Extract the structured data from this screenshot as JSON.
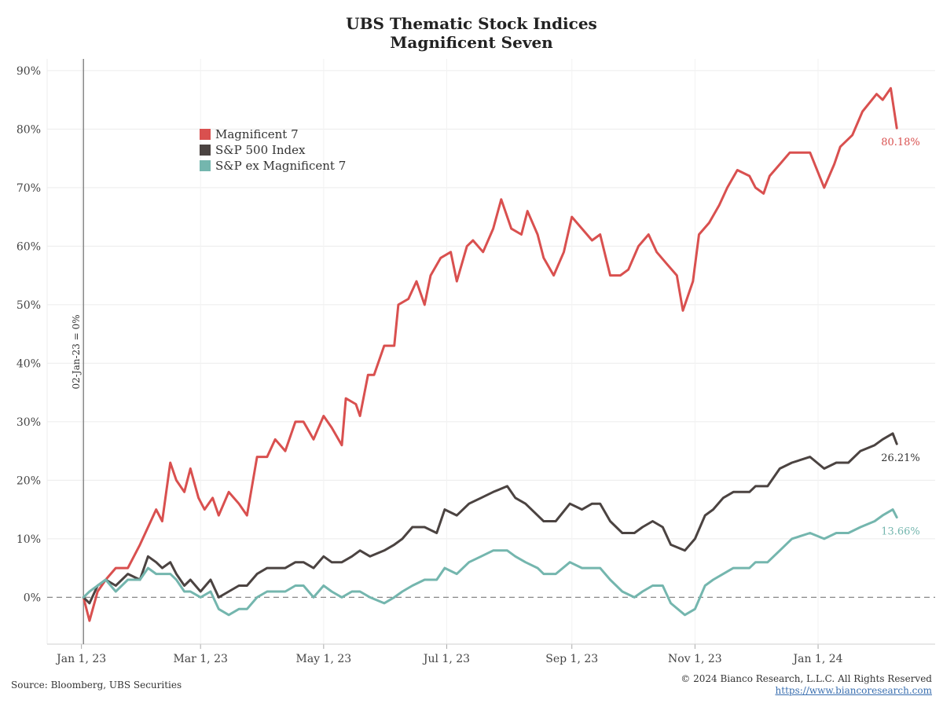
{
  "title": "UBS Thematic Stock Indices",
  "subtitle": "Magnificent Seven",
  "source": "Source: Bloomberg, UBS Securities",
  "copyright": "© 2024 Bianco Research, L.L.C. All Rights Reserved",
  "url": "https://www.biancoresearch.com",
  "chart_data": {
    "type": "line",
    "x_range": [
      "2022-12-15",
      "2024-02-28"
    ],
    "ylim": [
      -8,
      92
    ],
    "y_ticks": [
      0,
      10,
      20,
      30,
      40,
      50,
      60,
      70,
      80,
      90
    ],
    "y_tick_labels": [
      "0%",
      "10%",
      "20%",
      "30%",
      "40%",
      "50%",
      "60%",
      "70%",
      "80%",
      "90%"
    ],
    "x_ticks": [
      "2023-01-01",
      "2023-03-01",
      "2023-05-01",
      "2023-07-01",
      "2023-09-01",
      "2023-11-01",
      "2024-01-01"
    ],
    "x_tick_labels": [
      "Jan 1, 23",
      "Mar 1, 23",
      "May 1, 23",
      "Jul 1, 23",
      "Sep 1, 23",
      "Nov 1, 23",
      "Jan 1, 24"
    ],
    "grid": true,
    "legend_position": "top-left",
    "reference_line": {
      "date": "2023-01-02",
      "label": "02-Jan-23 = 0%"
    },
    "zero_line": true,
    "series": [
      {
        "name": "Magnificent 7",
        "color": "#d9504f",
        "end_label": "80.18%",
        "points": [
          [
            "2023-01-02",
            0
          ],
          [
            "2023-01-05",
            -4
          ],
          [
            "2023-01-09",
            1
          ],
          [
            "2023-01-13",
            3
          ],
          [
            "2023-01-18",
            5
          ],
          [
            "2023-01-24",
            5
          ],
          [
            "2023-01-30",
            9
          ],
          [
            "2023-02-03",
            12
          ],
          [
            "2023-02-07",
            15
          ],
          [
            "2023-02-10",
            13
          ],
          [
            "2023-02-14",
            23
          ],
          [
            "2023-02-17",
            20
          ],
          [
            "2023-02-21",
            18
          ],
          [
            "2023-02-24",
            22
          ],
          [
            "2023-02-28",
            17
          ],
          [
            "2023-03-03",
            15
          ],
          [
            "2023-03-07",
            17
          ],
          [
            "2023-03-10",
            14
          ],
          [
            "2023-03-15",
            18
          ],
          [
            "2023-03-20",
            16
          ],
          [
            "2023-03-24",
            14
          ],
          [
            "2023-03-29",
            24
          ],
          [
            "2023-04-03",
            24
          ],
          [
            "2023-04-07",
            27
          ],
          [
            "2023-04-12",
            25
          ],
          [
            "2023-04-17",
            30
          ],
          [
            "2023-04-21",
            30
          ],
          [
            "2023-04-26",
            27
          ],
          [
            "2023-05-01",
            31
          ],
          [
            "2023-05-05",
            29
          ],
          [
            "2023-05-10",
            26
          ],
          [
            "2023-05-12",
            34
          ],
          [
            "2023-05-17",
            33
          ],
          [
            "2023-05-19",
            31
          ],
          [
            "2023-05-23",
            38
          ],
          [
            "2023-05-26",
            38
          ],
          [
            "2023-05-31",
            43
          ],
          [
            "2023-06-05",
            43
          ],
          [
            "2023-06-07",
            50
          ],
          [
            "2023-06-12",
            51
          ],
          [
            "2023-06-16",
            54
          ],
          [
            "2023-06-20",
            50
          ],
          [
            "2023-06-23",
            55
          ],
          [
            "2023-06-28",
            58
          ],
          [
            "2023-07-03",
            59
          ],
          [
            "2023-07-06",
            54
          ],
          [
            "2023-07-11",
            60
          ],
          [
            "2023-07-14",
            61
          ],
          [
            "2023-07-19",
            59
          ],
          [
            "2023-07-24",
            63
          ],
          [
            "2023-07-28",
            68
          ],
          [
            "2023-08-02",
            63
          ],
          [
            "2023-08-07",
            62
          ],
          [
            "2023-08-10",
            66
          ],
          [
            "2023-08-15",
            62
          ],
          [
            "2023-08-18",
            58
          ],
          [
            "2023-08-23",
            55
          ],
          [
            "2023-08-28",
            59
          ],
          [
            "2023-09-01",
            65
          ],
          [
            "2023-09-06",
            63
          ],
          [
            "2023-09-11",
            61
          ],
          [
            "2023-09-15",
            62
          ],
          [
            "2023-09-20",
            55
          ],
          [
            "2023-09-25",
            55
          ],
          [
            "2023-09-29",
            56
          ],
          [
            "2023-10-04",
            60
          ],
          [
            "2023-10-09",
            62
          ],
          [
            "2023-10-13",
            59
          ],
          [
            "2023-10-18",
            57
          ],
          [
            "2023-10-23",
            55
          ],
          [
            "2023-10-26",
            49
          ],
          [
            "2023-10-31",
            54
          ],
          [
            "2023-11-03",
            62
          ],
          [
            "2023-11-08",
            64
          ],
          [
            "2023-11-13",
            67
          ],
          [
            "2023-11-17",
            70
          ],
          [
            "2023-11-22",
            73
          ],
          [
            "2023-11-28",
            72
          ],
          [
            "2023-12-01",
            70
          ],
          [
            "2023-12-05",
            69
          ],
          [
            "2023-12-08",
            72
          ],
          [
            "2023-12-13",
            74
          ],
          [
            "2023-12-18",
            76
          ],
          [
            "2023-12-22",
            76
          ],
          [
            "2023-12-28",
            76
          ],
          [
            "2024-01-04",
            70
          ],
          [
            "2024-01-09",
            74
          ],
          [
            "2024-01-12",
            77
          ],
          [
            "2024-01-18",
            79
          ],
          [
            "2024-01-23",
            83
          ],
          [
            "2024-01-30",
            86
          ],
          [
            "2024-02-02",
            85
          ],
          [
            "2024-02-06",
            87
          ],
          [
            "2024-02-09",
            80.18
          ]
        ]
      },
      {
        "name": "S&P 500 Index",
        "color": "#4b4341",
        "end_label": "26.21%",
        "points": [
          [
            "2023-01-02",
            0
          ],
          [
            "2023-01-05",
            -1
          ],
          [
            "2023-01-09",
            2
          ],
          [
            "2023-01-13",
            3
          ],
          [
            "2023-01-18",
            2
          ],
          [
            "2023-01-24",
            4
          ],
          [
            "2023-01-30",
            3
          ],
          [
            "2023-02-03",
            7
          ],
          [
            "2023-02-07",
            6
          ],
          [
            "2023-02-10",
            5
          ],
          [
            "2023-02-14",
            6
          ],
          [
            "2023-02-17",
            4
          ],
          [
            "2023-02-21",
            2
          ],
          [
            "2023-02-24",
            3
          ],
          [
            "2023-03-01",
            1
          ],
          [
            "2023-03-06",
            3
          ],
          [
            "2023-03-10",
            0
          ],
          [
            "2023-03-15",
            1
          ],
          [
            "2023-03-20",
            2
          ],
          [
            "2023-03-24",
            2
          ],
          [
            "2023-03-29",
            4
          ],
          [
            "2023-04-03",
            5
          ],
          [
            "2023-04-07",
            5
          ],
          [
            "2023-04-12",
            5
          ],
          [
            "2023-04-17",
            6
          ],
          [
            "2023-04-21",
            6
          ],
          [
            "2023-04-26",
            5
          ],
          [
            "2023-05-01",
            7
          ],
          [
            "2023-05-05",
            6
          ],
          [
            "2023-05-10",
            6
          ],
          [
            "2023-05-15",
            7
          ],
          [
            "2023-05-19",
            8
          ],
          [
            "2023-05-24",
            7
          ],
          [
            "2023-05-31",
            8
          ],
          [
            "2023-06-05",
            9
          ],
          [
            "2023-06-09",
            10
          ],
          [
            "2023-06-14",
            12
          ],
          [
            "2023-06-20",
            12
          ],
          [
            "2023-06-26",
            11
          ],
          [
            "2023-06-30",
            15
          ],
          [
            "2023-07-06",
            14
          ],
          [
            "2023-07-12",
            16
          ],
          [
            "2023-07-18",
            17
          ],
          [
            "2023-07-24",
            18
          ],
          [
            "2023-07-31",
            19
          ],
          [
            "2023-08-04",
            17
          ],
          [
            "2023-08-09",
            16
          ],
          [
            "2023-08-15",
            14
          ],
          [
            "2023-08-18",
            13
          ],
          [
            "2023-08-24",
            13
          ],
          [
            "2023-08-31",
            16
          ],
          [
            "2023-09-06",
            15
          ],
          [
            "2023-09-11",
            16
          ],
          [
            "2023-09-15",
            16
          ],
          [
            "2023-09-20",
            13
          ],
          [
            "2023-09-26",
            11
          ],
          [
            "2023-10-02",
            11
          ],
          [
            "2023-10-06",
            12
          ],
          [
            "2023-10-11",
            13
          ],
          [
            "2023-10-16",
            12
          ],
          [
            "2023-10-20",
            9
          ],
          [
            "2023-10-27",
            8
          ],
          [
            "2023-11-01",
            10
          ],
          [
            "2023-11-06",
            14
          ],
          [
            "2023-11-10",
            15
          ],
          [
            "2023-11-15",
            17
          ],
          [
            "2023-11-20",
            18
          ],
          [
            "2023-11-28",
            18
          ],
          [
            "2023-12-01",
            19
          ],
          [
            "2023-12-07",
            19
          ],
          [
            "2023-12-13",
            22
          ],
          [
            "2023-12-19",
            23
          ],
          [
            "2023-12-28",
            24
          ],
          [
            "2024-01-04",
            22
          ],
          [
            "2024-01-10",
            23
          ],
          [
            "2024-01-16",
            23
          ],
          [
            "2024-01-22",
            25
          ],
          [
            "2024-01-29",
            26
          ],
          [
            "2024-02-02",
            27
          ],
          [
            "2024-02-07",
            28
          ],
          [
            "2024-02-09",
            26.21
          ]
        ]
      },
      {
        "name": "S&P ex Magnificent 7",
        "color": "#74b6ae",
        "end_label": "13.66%",
        "points": [
          [
            "2023-01-02",
            0
          ],
          [
            "2023-01-05",
            1
          ],
          [
            "2023-01-09",
            2
          ],
          [
            "2023-01-13",
            3
          ],
          [
            "2023-01-18",
            1
          ],
          [
            "2023-01-24",
            3
          ],
          [
            "2023-01-30",
            3
          ],
          [
            "2023-02-03",
            5
          ],
          [
            "2023-02-07",
            4
          ],
          [
            "2023-02-10",
            4
          ],
          [
            "2023-02-14",
            4
          ],
          [
            "2023-02-17",
            3
          ],
          [
            "2023-02-21",
            1
          ],
          [
            "2023-02-24",
            1
          ],
          [
            "2023-03-01",
            0
          ],
          [
            "2023-03-06",
            1
          ],
          [
            "2023-03-10",
            -2
          ],
          [
            "2023-03-15",
            -3
          ],
          [
            "2023-03-20",
            -2
          ],
          [
            "2023-03-24",
            -2
          ],
          [
            "2023-03-29",
            0
          ],
          [
            "2023-04-03",
            1
          ],
          [
            "2023-04-07",
            1
          ],
          [
            "2023-04-12",
            1
          ],
          [
            "2023-04-17",
            2
          ],
          [
            "2023-04-21",
            2
          ],
          [
            "2023-04-26",
            0
          ],
          [
            "2023-05-01",
            2
          ],
          [
            "2023-05-05",
            1
          ],
          [
            "2023-05-10",
            0
          ],
          [
            "2023-05-15",
            1
          ],
          [
            "2023-05-19",
            1
          ],
          [
            "2023-05-24",
            0
          ],
          [
            "2023-05-31",
            -1
          ],
          [
            "2023-06-05",
            0
          ],
          [
            "2023-06-09",
            1
          ],
          [
            "2023-06-14",
            2
          ],
          [
            "2023-06-20",
            3
          ],
          [
            "2023-06-26",
            3
          ],
          [
            "2023-06-30",
            5
          ],
          [
            "2023-07-06",
            4
          ],
          [
            "2023-07-12",
            6
          ],
          [
            "2023-07-18",
            7
          ],
          [
            "2023-07-24",
            8
          ],
          [
            "2023-07-31",
            8
          ],
          [
            "2023-08-04",
            7
          ],
          [
            "2023-08-09",
            6
          ],
          [
            "2023-08-15",
            5
          ],
          [
            "2023-08-18",
            4
          ],
          [
            "2023-08-24",
            4
          ],
          [
            "2023-08-31",
            6
          ],
          [
            "2023-09-06",
            5
          ],
          [
            "2023-09-11",
            5
          ],
          [
            "2023-09-15",
            5
          ],
          [
            "2023-09-20",
            3
          ],
          [
            "2023-09-26",
            1
          ],
          [
            "2023-10-02",
            0
          ],
          [
            "2023-10-06",
            1
          ],
          [
            "2023-10-11",
            2
          ],
          [
            "2023-10-16",
            2
          ],
          [
            "2023-10-20",
            -1
          ],
          [
            "2023-10-27",
            -3
          ],
          [
            "2023-11-01",
            -2
          ],
          [
            "2023-11-06",
            2
          ],
          [
            "2023-11-10",
            3
          ],
          [
            "2023-11-15",
            4
          ],
          [
            "2023-11-20",
            5
          ],
          [
            "2023-11-28",
            5
          ],
          [
            "2023-12-01",
            6
          ],
          [
            "2023-12-07",
            6
          ],
          [
            "2023-12-13",
            8
          ],
          [
            "2023-12-19",
            10
          ],
          [
            "2023-12-28",
            11
          ],
          [
            "2024-01-04",
            10
          ],
          [
            "2024-01-10",
            11
          ],
          [
            "2024-01-16",
            11
          ],
          [
            "2024-01-22",
            12
          ],
          [
            "2024-01-29",
            13
          ],
          [
            "2024-02-02",
            14
          ],
          [
            "2024-02-07",
            15
          ],
          [
            "2024-02-09",
            13.66
          ]
        ]
      }
    ]
  }
}
